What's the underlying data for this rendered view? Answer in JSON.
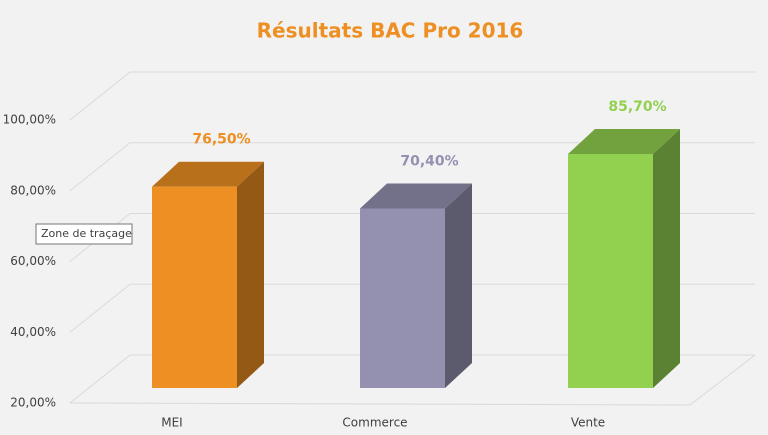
{
  "chart_data": {
    "type": "bar3d",
    "title": "Résultats BAC Pro 2016",
    "categories": [
      "MEI",
      "Commerce",
      "Vente"
    ],
    "values": [
      76.5,
      70.4,
      85.7
    ],
    "value_labels": [
      "76,50%",
      "70,40%",
      "85,70%"
    ],
    "colors": [
      "#ed8f22",
      "#9491b0",
      "#92d050"
    ],
    "ylim": [
      20,
      100
    ],
    "yticks": [
      {
        "value": 20,
        "label": "20,00%"
      },
      {
        "value": 40,
        "label": "40,00%"
      },
      {
        "value": 60,
        "label": "60,00%"
      },
      {
        "value": 80,
        "label": "80,00%"
      },
      {
        "value": 100,
        "label": "100,00%"
      }
    ],
    "grid": true,
    "tooltip": "Zone de traçage"
  }
}
